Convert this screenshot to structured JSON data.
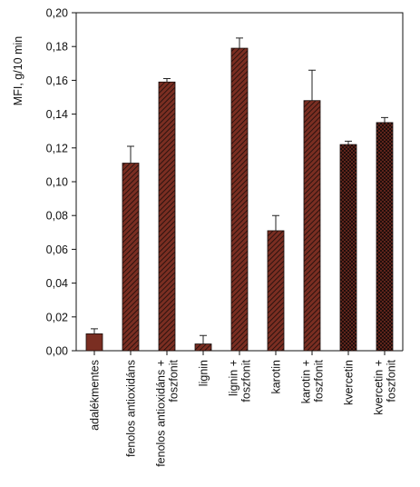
{
  "chart_data": {
    "type": "bar",
    "ylabel": "MFI, g/10 min",
    "ylim": [
      0,
      0.2
    ],
    "yticks": [
      0,
      0.02,
      0.04,
      0.06,
      0.08,
      0.1,
      0.12,
      0.14,
      0.16,
      0.18,
      0.2
    ],
    "ytick_labels": [
      "0,00",
      "0,02",
      "0,04",
      "0,06",
      "0,08",
      "0,10",
      "0,12",
      "0,14",
      "0,16",
      "0,18",
      "0,20"
    ],
    "categories": [
      [
        "adalékmentes"
      ],
      [
        "fenolos antioxidáns"
      ],
      [
        "fenolos antioxidáns +",
        "foszfonit"
      ],
      [
        "lignin"
      ],
      [
        "lignin +",
        "foszfonit"
      ],
      [
        "karotin"
      ],
      [
        "karotin +",
        "foszfonit"
      ],
      [
        "kvercetin"
      ],
      [
        "kvercetin +",
        "foszfonit"
      ]
    ],
    "values": [
      0.01,
      0.111,
      0.159,
      0.004,
      0.179,
      0.071,
      0.148,
      0.122,
      0.135
    ],
    "errors": [
      0.003,
      0.01,
      0.002,
      0.005,
      0.006,
      0.009,
      0.018,
      0.002,
      0.003
    ],
    "patterns": [
      "solid",
      "diag",
      "diag",
      "diag",
      "diag",
      "diag",
      "diag",
      "cross",
      "cross"
    ],
    "colors": {
      "bar_fill": "#7a2e22",
      "hatch": "#1a0c0a",
      "axis": "#111111"
    }
  }
}
